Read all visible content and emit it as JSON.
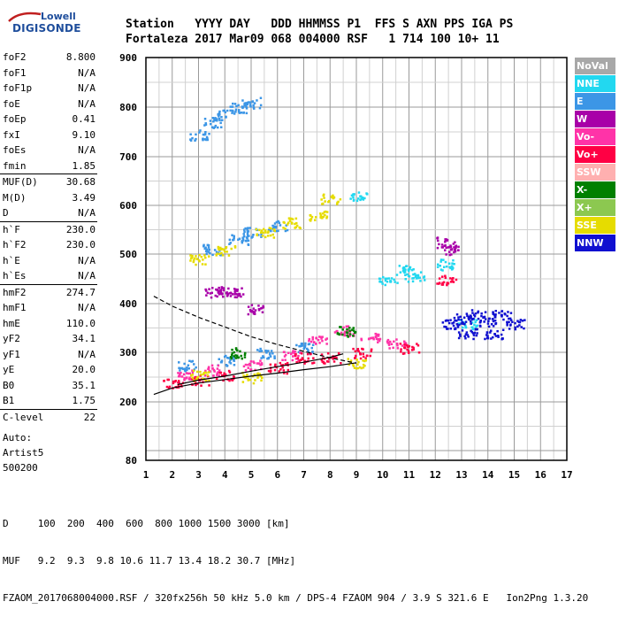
{
  "logo": {
    "line1": "Lowell",
    "line2": "DIGISONDE"
  },
  "header": {
    "labels_line": "Station   YYYY DAY   DDD HHMMSS P1  FFS S AXN PPS IGA PS",
    "values_line": "Fortaleza 2017 Mar09 068 004000 RSF   1 714 100 10+ 11"
  },
  "params": [
    {
      "label": "foF2",
      "value": "8.800"
    },
    {
      "label": "foF1",
      "value": "N/A"
    },
    {
      "label": "foF1p",
      "value": "N/A"
    },
    {
      "label": "foE",
      "value": "N/A"
    },
    {
      "label": "foEp",
      "value": "0.41"
    },
    {
      "label": "fxI",
      "value": "9.10"
    },
    {
      "label": "foEs",
      "value": "N/A"
    },
    {
      "label": "fmin",
      "value": "1.85"
    },
    {
      "label": "MUF(D)",
      "value": "30.68",
      "sep": true
    },
    {
      "label": "M(D)",
      "value": "3.49"
    },
    {
      "label": "D",
      "value": "N/A"
    },
    {
      "label": "h`F",
      "value": "230.0",
      "sep": true
    },
    {
      "label": "h`F2",
      "value": "230.0"
    },
    {
      "label": "h`E",
      "value": "N/A"
    },
    {
      "label": "h`Es",
      "value": "N/A"
    },
    {
      "label": "hmF2",
      "value": "274.7",
      "sep": true
    },
    {
      "label": "hmF1",
      "value": "N/A"
    },
    {
      "label": "hmE",
      "value": "110.0"
    },
    {
      "label": "yF2",
      "value": "34.1"
    },
    {
      "label": "yF1",
      "value": "N/A"
    },
    {
      "label": "yE",
      "value": "20.0"
    },
    {
      "label": "B0",
      "value": "35.1"
    },
    {
      "label": "B1",
      "value": "1.75"
    },
    {
      "label": "C-level",
      "value": "22",
      "sep": true
    }
  ],
  "auto": {
    "line1": "Auto:",
    "line2": "Artist5",
    "line3": "500200"
  },
  "footer": {
    "line1": "D     100  200  400  600  800 1000 1500 3000 [km]",
    "line2": "MUF   9.2  9.3  9.8 10.6 11.7 13.4 18.2 30.7 [MHz]",
    "line3": "FZAOM_2017068004000.RSF / 320fx256h 50 kHz 5.0 km / DPS-4 FZAOM 904 / 3.9 S 321.6 E   Ion2Png 1.3.20"
  },
  "legend": [
    {
      "label": "NoVal",
      "color": "#a8a8a8"
    },
    {
      "label": "NNE",
      "color": "#22d8f0"
    },
    {
      "label": "E",
      "color": "#3c96e6"
    },
    {
      "label": "W",
      "color": "#a800a8"
    },
    {
      "label": "Vo-",
      "color": "#ff33a8"
    },
    {
      "label": "Vo+",
      "color": "#ff0044"
    },
    {
      "label": "SSW",
      "color": "#ffb0b0"
    },
    {
      "label": "X-",
      "color": "#008000"
    },
    {
      "label": "X+",
      "color": "#8cc850"
    },
    {
      "label": "SSE",
      "color": "#e6dc00"
    },
    {
      "label": "NNW",
      "color": "#1010d0"
    }
  ],
  "chart_data": {
    "type": "scatter",
    "xlim": [
      1,
      17
    ],
    "ylim": [
      80,
      900
    ],
    "x_ticks": [
      "1",
      "2",
      "3",
      "4",
      "5",
      "6",
      "7",
      "8",
      "9",
      "10",
      "11",
      "12",
      "13",
      "14",
      "15",
      "16",
      "17"
    ],
    "y_ticks": [
      "200",
      "300",
      "400",
      "500",
      "600",
      "700",
      "800",
      "900"
    ],
    "grid": true,
    "legend_position": "right",
    "series": [
      {
        "name": "NNE",
        "values": [
          [
            9.0,
            620
          ],
          [
            10.2,
            450
          ],
          [
            10.8,
            470
          ],
          [
            11.2,
            455
          ],
          [
            12.4,
            480
          ],
          [
            13.2,
            360
          ]
        ]
      },
      {
        "name": "E",
        "values": [
          [
            3.0,
            745
          ],
          [
            3.5,
            770
          ],
          [
            4.0,
            785
          ],
          [
            4.5,
            800
          ],
          [
            5.0,
            810
          ],
          [
            3.5,
            510
          ],
          [
            4.5,
            530
          ],
          [
            5.0,
            545
          ],
          [
            6.0,
            560
          ],
          [
            2.5,
            275
          ],
          [
            4.0,
            285
          ],
          [
            5.5,
            300
          ],
          [
            7.0,
            310
          ]
        ]
      },
      {
        "name": "W",
        "values": [
          [
            3.6,
            425
          ],
          [
            4.0,
            425
          ],
          [
            4.4,
            425
          ],
          [
            5.2,
            390
          ],
          [
            12.4,
            525
          ],
          [
            12.6,
            510
          ]
        ]
      },
      {
        "name": "Vo-",
        "values": [
          [
            2.5,
            255
          ],
          [
            3.5,
            265
          ],
          [
            5.0,
            275
          ],
          [
            6.5,
            295
          ],
          [
            7.5,
            330
          ],
          [
            8.5,
            345
          ],
          [
            9.5,
            330
          ],
          [
            10.5,
            320
          ]
        ]
      },
      {
        "name": "Vo+",
        "values": [
          [
            2.0,
            240
          ],
          [
            3.0,
            245
          ],
          [
            4.0,
            255
          ],
          [
            6.0,
            270
          ],
          [
            7.0,
            290
          ],
          [
            8.0,
            290
          ],
          [
            9.2,
            300
          ],
          [
            11.0,
            310
          ],
          [
            12.4,
            450
          ]
        ]
      },
      {
        "name": "X-",
        "values": [
          [
            4.5,
            300
          ],
          [
            8.6,
            345
          ]
        ]
      },
      {
        "name": "SSE",
        "values": [
          [
            3.0,
            490
          ],
          [
            4.0,
            510
          ],
          [
            5.5,
            545
          ],
          [
            6.5,
            565
          ],
          [
            8.0,
            615
          ],
          [
            7.5,
            580
          ],
          [
            3.0,
            255
          ],
          [
            5.0,
            250
          ],
          [
            9.0,
            280
          ]
        ]
      },
      {
        "name": "NNW",
        "values": [
          [
            12.6,
            360
          ],
          [
            13.0,
            370
          ],
          [
            13.5,
            380
          ],
          [
            14.0,
            365
          ],
          [
            14.5,
            380
          ],
          [
            15.0,
            360
          ],
          [
            13.2,
            340
          ],
          [
            14.2,
            340
          ]
        ]
      }
    ],
    "curves": [
      {
        "style": "solid",
        "values": [
          [
            1.3,
            215
          ],
          [
            2,
            228
          ],
          [
            3,
            238
          ],
          [
            4,
            245
          ],
          [
            5,
            252
          ],
          [
            6,
            258
          ],
          [
            7,
            265
          ],
          [
            8,
            271
          ],
          [
            9,
            279
          ]
        ]
      },
      {
        "style": "dashed",
        "values": [
          [
            1.3,
            415
          ],
          [
            2,
            395
          ],
          [
            3,
            372
          ],
          [
            4,
            352
          ],
          [
            5,
            332
          ],
          [
            6,
            316
          ],
          [
            7,
            302
          ],
          [
            8,
            289
          ],
          [
            9,
            278
          ]
        ]
      },
      {
        "style": "solid",
        "values": [
          [
            2.2,
            235
          ],
          [
            3,
            244
          ],
          [
            4,
            252
          ],
          [
            5,
            262
          ],
          [
            6,
            271
          ],
          [
            7,
            280
          ],
          [
            8,
            290
          ],
          [
            8.5,
            297
          ]
        ]
      }
    ]
  }
}
